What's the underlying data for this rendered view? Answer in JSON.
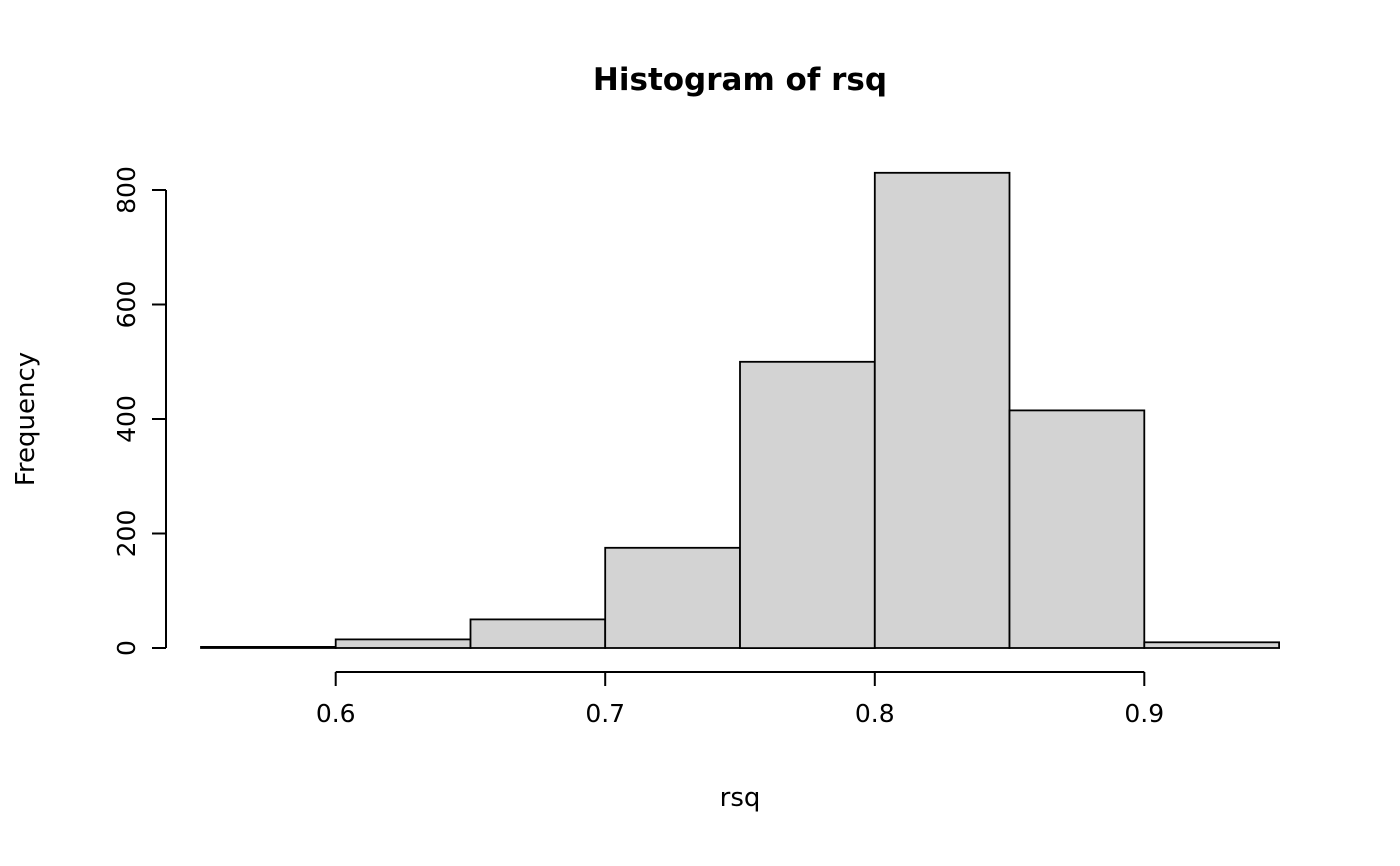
{
  "chart_data": {
    "type": "bar",
    "subtype": "histogram",
    "title": "Histogram of rsq",
    "xlabel": "rsq",
    "ylabel": "Frequency",
    "bins": {
      "breaks": [
        0.55,
        0.6,
        0.65,
        0.7,
        0.75,
        0.8,
        0.85,
        0.9,
        0.95
      ],
      "counts": [
        2,
        15,
        50,
        175,
        500,
        830,
        415,
        10
      ]
    },
    "x_ticks": [
      0.6,
      0.7,
      0.8,
      0.9
    ],
    "x_tick_labels": [
      "0.6",
      "0.7",
      "0.8",
      "0.9"
    ],
    "y_ticks": [
      0,
      200,
      400,
      600,
      800
    ],
    "y_tick_labels": [
      "0",
      "200",
      "400",
      "600",
      "800"
    ],
    "xlim": [
      0.55,
      0.95
    ],
    "ylim": [
      0,
      830
    ],
    "grid": false,
    "legend": "none",
    "bar_fill": "#d3d3d3",
    "bar_stroke": "#000000",
    "axis_color": "#000000",
    "background": "#ffffff"
  }
}
